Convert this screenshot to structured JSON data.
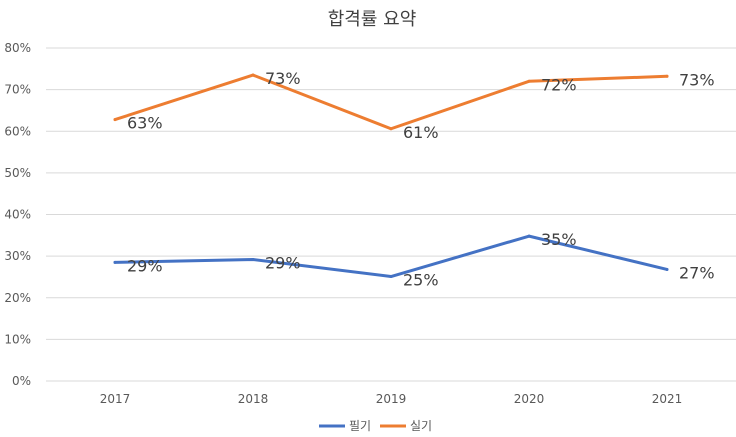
{
  "chart_data": {
    "type": "line",
    "title": "합격률 요약",
    "categories": [
      "2017",
      "2018",
      "2019",
      "2020",
      "2021"
    ],
    "ylim": [
      0,
      80
    ],
    "yticks": [
      0,
      10,
      20,
      30,
      40,
      50,
      60,
      70,
      80
    ],
    "ytick_labels": [
      "0%",
      "10%",
      "20%",
      "30%",
      "40%",
      "50%",
      "60%",
      "70%",
      "80%"
    ],
    "grid": true,
    "legend_position": "bottom",
    "series": [
      {
        "name": "필기",
        "color": "#4472c4",
        "values": [
          28.5,
          29.2,
          25.1,
          34.8,
          26.8
        ],
        "labels": [
          "29%",
          "29%",
          "25%",
          "35%",
          "27%"
        ]
      },
      {
        "name": "실기",
        "color": "#ed7d31",
        "values": [
          62.8,
          73.5,
          60.6,
          72.0,
          73.2
        ],
        "labels": [
          "63%",
          "73%",
          "61%",
          "72%",
          "73%"
        ]
      }
    ]
  }
}
